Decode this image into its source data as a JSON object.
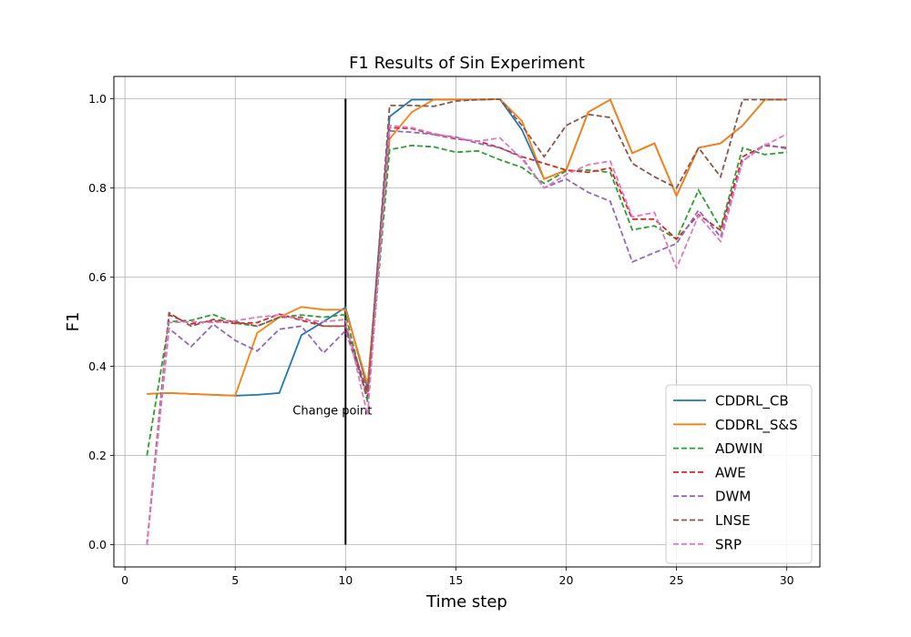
{
  "chart_data": {
    "type": "line",
    "title": "F1 Results of Sin Experiment",
    "xlabel": "Time step",
    "ylabel": "F1",
    "xlim": [
      -0.5,
      31.5
    ],
    "ylim": [
      -0.05,
      1.05
    ],
    "xticks": [
      0,
      5,
      10,
      15,
      20,
      25,
      30
    ],
    "yticks": [
      0.0,
      0.2,
      0.4,
      0.6,
      0.8,
      1.0
    ],
    "grid": true,
    "legend_position": "lower right",
    "x": [
      1,
      2,
      3,
      4,
      5,
      6,
      7,
      8,
      9,
      10,
      11,
      12,
      13,
      14,
      15,
      16,
      17,
      18,
      19,
      20,
      21,
      22,
      23,
      24,
      25,
      26,
      27,
      28,
      29,
      30
    ],
    "series": [
      {
        "name": "CDDRL_CB",
        "color": "#1f77b4",
        "dash": "solid",
        "values": [
          0.338,
          0.34,
          0.338,
          0.336,
          0.334,
          0.336,
          0.34,
          0.47,
          0.5,
          0.532,
          0.35,
          0.96,
          0.998,
          0.998,
          0.998,
          0.998,
          0.999,
          0.93,
          0.82,
          0.84,
          0.97,
          0.998,
          0.878,
          0.9,
          0.782,
          0.89,
          0.9,
          0.94,
          0.998,
          0.998
        ]
      },
      {
        "name": "CDDRL_S&S",
        "color": "#ff7f0e",
        "dash": "solid",
        "values": [
          0.338,
          0.34,
          0.338,
          0.336,
          0.334,
          0.475,
          0.51,
          0.533,
          0.527,
          0.527,
          0.36,
          0.91,
          0.97,
          0.998,
          0.998,
          0.998,
          0.999,
          0.95,
          0.82,
          0.84,
          0.97,
          0.998,
          0.878,
          0.9,
          0.782,
          0.89,
          0.9,
          0.94,
          0.998,
          0.998
        ]
      },
      {
        "name": "ADWIN",
        "color": "#2ca02c",
        "dash": "dashed",
        "values": [
          0.2,
          0.5,
          0.503,
          0.516,
          0.497,
          0.49,
          0.51,
          0.515,
          0.51,
          0.516,
          0.32,
          0.886,
          0.895,
          0.892,
          0.88,
          0.883,
          0.863,
          0.846,
          0.81,
          0.838,
          0.84,
          0.835,
          0.706,
          0.715,
          0.685,
          0.795,
          0.71,
          0.89,
          0.875,
          0.88
        ]
      },
      {
        "name": "AWE",
        "color": "#d62728",
        "dash": "dashed",
        "values": [
          0.0,
          0.515,
          0.495,
          0.502,
          0.496,
          0.498,
          0.517,
          0.503,
          0.49,
          0.49,
          0.34,
          0.935,
          0.933,
          0.92,
          0.91,
          0.905,
          0.89,
          0.87,
          0.855,
          0.84,
          0.835,
          0.845,
          0.73,
          0.73,
          0.685,
          0.74,
          0.705,
          0.87,
          0.895,
          0.89
        ]
      },
      {
        "name": "DWM",
        "color": "#9467bd",
        "dash": "dashed",
        "values": [
          0.0,
          0.485,
          0.444,
          0.494,
          0.458,
          0.434,
          0.483,
          0.49,
          0.43,
          0.48,
          0.33,
          0.928,
          0.925,
          0.92,
          0.914,
          0.9,
          0.89,
          0.868,
          0.8,
          0.82,
          0.79,
          0.77,
          0.634,
          0.655,
          0.675,
          0.75,
          0.69,
          0.86,
          0.898,
          0.888
        ]
      },
      {
        "name": "LNSE",
        "color": "#8c564b",
        "dash": "dashed",
        "values": [
          0.0,
          0.52,
          0.49,
          0.505,
          0.5,
          0.49,
          0.51,
          0.51,
          0.49,
          0.49,
          0.33,
          0.985,
          0.985,
          0.983,
          0.995,
          0.998,
          0.999,
          0.94,
          0.87,
          0.94,
          0.965,
          0.958,
          0.855,
          0.825,
          0.8,
          0.89,
          0.825,
          0.998,
          0.998,
          0.998
        ]
      },
      {
        "name": "SRP",
        "color": "#e377c2",
        "dash": "dashed",
        "values": [
          0.0,
          0.498,
          0.5,
          0.498,
          0.502,
          0.51,
          0.515,
          0.505,
          0.5,
          0.505,
          0.29,
          0.94,
          0.935,
          0.922,
          0.912,
          0.905,
          0.912,
          0.865,
          0.8,
          0.83,
          0.852,
          0.86,
          0.735,
          0.745,
          0.62,
          0.738,
          0.68,
          0.86,
          0.895,
          0.921
        ]
      }
    ],
    "annotation": {
      "label": "Change point",
      "x": 10,
      "y0": 0.0,
      "y1": 1.0
    }
  }
}
